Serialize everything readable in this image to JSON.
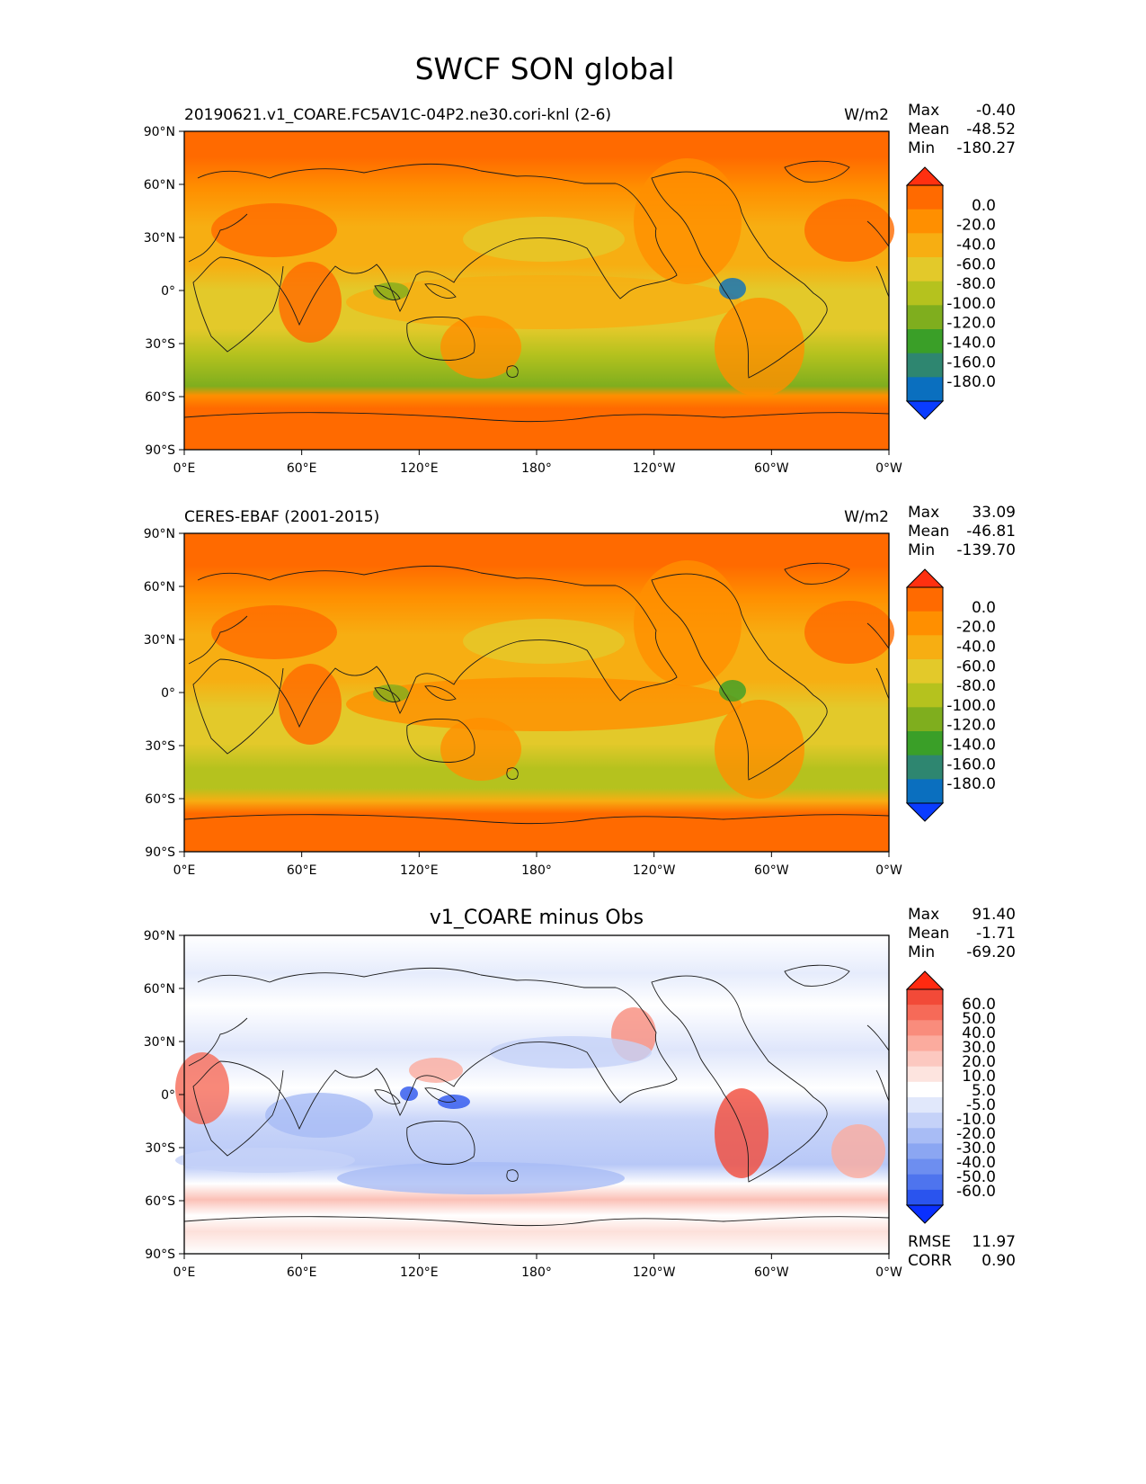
{
  "title": "SWCF SON global",
  "x_ticks": [
    "0°E",
    "60°E",
    "120°E",
    "180°",
    "120°W",
    "60°W",
    "0°W"
  ],
  "y_ticks": [
    "90°N",
    "60°N",
    "30°N",
    "0°",
    "30°S",
    "60°S",
    "90°S"
  ],
  "panels": [
    {
      "id": "test",
      "title_left": "20190621.v1_COARE.FC5AV1C-04P2.ne30.cori-knl (2-6)",
      "title_center": "",
      "units": "W/m2",
      "stats": [
        {
          "label": "Max",
          "value": "-0.40"
        },
        {
          "label": "Mean",
          "value": "-48.52"
        },
        {
          "label": "Min",
          "value": "-180.27"
        }
      ],
      "colorbar_labels": [
        "0.0",
        "-20.0",
        "-40.0",
        "-60.0",
        "-80.0",
        "-100.0",
        "-120.0",
        "-140.0",
        "-160.0",
        "-180.0"
      ],
      "colorbar_colors": [
        "#ff3010",
        "#ff6a00",
        "#ff8f00",
        "#f7ae12",
        "#e3c92a",
        "#b5c21e",
        "#7fae1e",
        "#3a9f28",
        "#2e8670",
        "#0a6fbf",
        "#0a3cff"
      ],
      "footer": []
    },
    {
      "id": "reference",
      "title_left": "CERES-EBAF (2001-2015)",
      "title_center": "",
      "units": "W/m2",
      "stats": [
        {
          "label": "Max",
          "value": "33.09"
        },
        {
          "label": "Mean",
          "value": "-46.81"
        },
        {
          "label": "Min",
          "value": "-139.70"
        }
      ],
      "colorbar_labels": [
        "0.0",
        "-20.0",
        "-40.0",
        "-60.0",
        "-80.0",
        "-100.0",
        "-120.0",
        "-140.0",
        "-160.0",
        "-180.0"
      ],
      "colorbar_colors": [
        "#ff3010",
        "#ff6a00",
        "#ff8f00",
        "#f7ae12",
        "#e3c92a",
        "#b5c21e",
        "#7fae1e",
        "#3a9f28",
        "#2e8670",
        "#0a6fbf",
        "#0a3cff"
      ],
      "footer": []
    },
    {
      "id": "difference",
      "title_left": "",
      "title_center": "v1_COARE minus Obs",
      "units": "",
      "stats": [
        {
          "label": "Max",
          "value": "91.40"
        },
        {
          "label": "Mean",
          "value": "-1.71"
        },
        {
          "label": "Min",
          "value": "-69.20"
        }
      ],
      "colorbar_labels": [
        "60.0",
        "50.0",
        "40.0",
        "30.0",
        "20.0",
        "10.0",
        "5.0",
        "-5.0",
        "-10.0",
        "-20.0",
        "-30.0",
        "-40.0",
        "-50.0",
        "-60.0"
      ],
      "colorbar_colors": [
        "#ff2a10",
        "#f24a38",
        "#f66a58",
        "#f98c7c",
        "#fbab9e",
        "#fcc8c0",
        "#fde4df",
        "#ffffff",
        "#e1e8fb",
        "#c5d2f8",
        "#a8bcf5",
        "#8ba6f2",
        "#6d8ef0",
        "#4e74ee",
        "#2a54ee",
        "#0a30ff"
      ],
      "footer": [
        {
          "label": "RMSE",
          "value": "11.97"
        },
        {
          "label": "CORR",
          "value": "0.90"
        }
      ]
    }
  ]
}
